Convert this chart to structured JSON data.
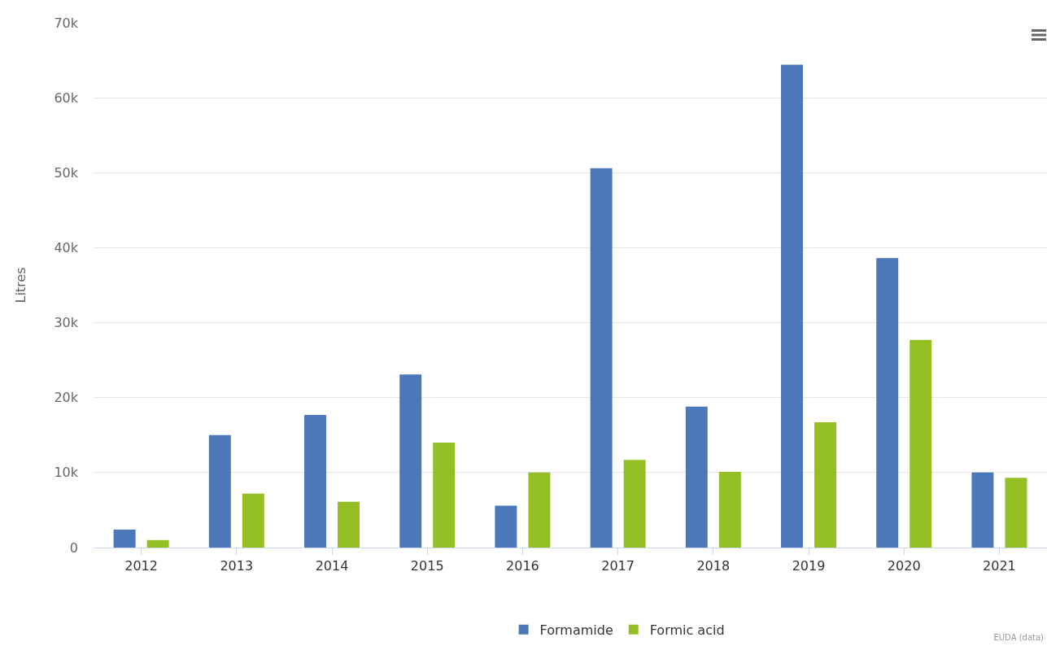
{
  "chart_data": {
    "type": "bar",
    "ylabel": "Litres",
    "categories": [
      "2012",
      "2013",
      "2014",
      "2015",
      "2016",
      "2017",
      "2018",
      "2019",
      "2020",
      "2021"
    ],
    "series": [
      {
        "name": "Formamide",
        "color": "#4a78b9",
        "values": [
          2400,
          15000,
          17700,
          23100,
          5600,
          50600,
          18800,
          64400,
          38600,
          10000
        ]
      },
      {
        "name": "Formic acid",
        "color": "#93bf24",
        "values": [
          1000,
          7200,
          6100,
          14000,
          10000,
          11700,
          10100,
          16700,
          27700,
          9300
        ]
      }
    ],
    "ylim": [
      0,
      70000
    ],
    "yticks": [
      0,
      {
        "value": 10000,
        "label": "10k"
      },
      {
        "value": 20000,
        "label": "20k"
      },
      {
        "value": 30000,
        "label": "30k"
      },
      {
        "value": 40000,
        "label": "40k"
      },
      {
        "value": 50000,
        "label": "50k"
      },
      {
        "value": 60000,
        "label": "60k"
      },
      {
        "value": 70000,
        "label": "70k"
      }
    ],
    "grid": "y",
    "legend": "bottom",
    "annotations": [
      "EUDA (data)"
    ]
  }
}
